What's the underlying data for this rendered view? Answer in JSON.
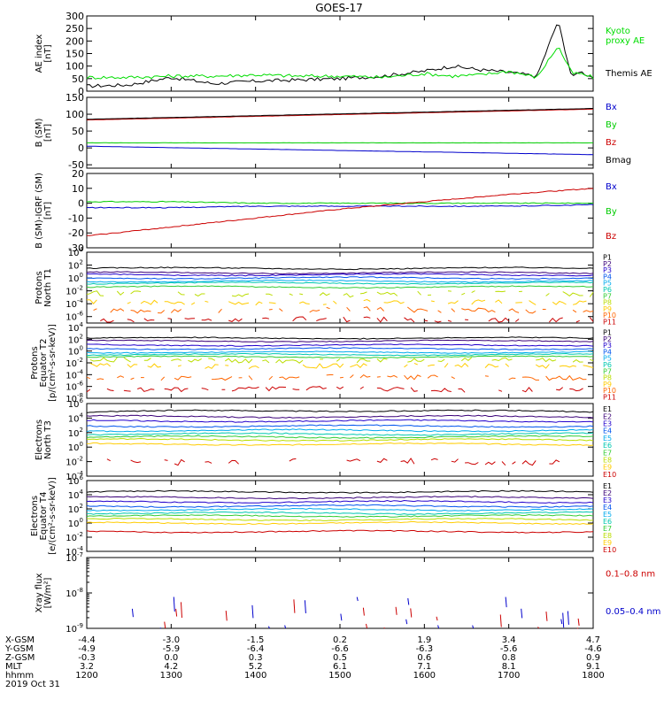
{
  "title": "GOES-17",
  "time_axis": {
    "hhmm_ticks": [
      "1200",
      "1300",
      "1400",
      "1500",
      "1600",
      "1700",
      "1800"
    ],
    "rows": [
      {
        "label": "X-GSM",
        "values": [
          "-4.4",
          "-3.0",
          "-1.5",
          "0.2",
          "1.9",
          "3.4",
          "4.7"
        ]
      },
      {
        "label": "Y-GSM",
        "values": [
          "-4.9",
          "-5.9",
          "-6.4",
          "-6.6",
          "-6.3",
          "-5.6",
          "-4.6"
        ]
      },
      {
        "label": "Z-GSM",
        "values": [
          "-0.3",
          "0.0",
          "0.3",
          "0.5",
          "0.6",
          "0.8",
          "0.9"
        ]
      },
      {
        "label": "MLT",
        "values": [
          "3.2",
          "4.2",
          "5.2",
          "6.1",
          "7.1",
          "8.1",
          "9.1"
        ]
      },
      {
        "label": "hhmm",
        "values": [
          "1200",
          "1300",
          "1400",
          "1500",
          "1600",
          "1700",
          "1800"
        ]
      }
    ],
    "date": "2019 Oct 31"
  },
  "chart_data": [
    {
      "type": "line",
      "ylabel_lines": [
        "AE index",
        "[nT]"
      ],
      "ylim": [
        0,
        300
      ],
      "yticks": [
        "300",
        "250",
        "200",
        "150",
        "100",
        "50",
        "0"
      ],
      "ytick_values": [
        300,
        250,
        200,
        150,
        100,
        50,
        0
      ],
      "x": [
        1200,
        1230,
        1300,
        1330,
        1400,
        1430,
        1500,
        1530,
        1600,
        1620,
        1640,
        1700,
        1720,
        1735,
        1745,
        1750,
        1800
      ],
      "series": [
        {
          "name": "Themis AE",
          "color": "#000000",
          "values": [
            20,
            25,
            55,
            30,
            40,
            45,
            50,
            60,
            80,
            100,
            85,
            75,
            60,
            280,
            50,
            80,
            55
          ]
        },
        {
          "name": "Kyoto proxy AE",
          "color": "#00dd00",
          "values": [
            55,
            55,
            60,
            60,
            65,
            60,
            60,
            55,
            70,
            60,
            65,
            80,
            55,
            180,
            70,
            70,
            55
          ]
        }
      ],
      "legend": [
        {
          "lines": [
            "Kyoto",
            "proxy AE"
          ],
          "color": "#00dd00"
        },
        {
          "lines": [
            "Themis AE"
          ],
          "color": "#000000"
        }
      ]
    },
    {
      "type": "line",
      "ylabel_lines": [
        "B (SM)",
        "[nT]"
      ],
      "ylim": [
        -60,
        150
      ],
      "yticks": [
        "150",
        "100",
        "50",
        "0",
        "-50"
      ],
      "ytick_values": [
        150,
        100,
        50,
        0,
        -50
      ],
      "x": [
        1200,
        1800
      ],
      "series": [
        {
          "name": "Bz",
          "color": "#cc0000",
          "values": [
            83,
            115
          ]
        },
        {
          "name": "Bmag",
          "color": "#000000",
          "values": [
            85,
            117
          ]
        },
        {
          "name": "By",
          "color": "#00cc00",
          "values": [
            15,
            15
          ]
        },
        {
          "name": "Bx",
          "color": "#0000cc",
          "values": [
            5,
            -20
          ]
        }
      ],
      "legend": [
        {
          "lines": [
            "Bx"
          ],
          "color": "#0000cc"
        },
        {
          "lines": [
            "By"
          ],
          "color": "#00cc00"
        },
        {
          "lines": [
            "Bz"
          ],
          "color": "#cc0000"
        },
        {
          "lines": [
            "Bmag"
          ],
          "color": "#000000"
        }
      ]
    },
    {
      "type": "line",
      "ylabel_lines": [
        "B (SM)-IGRF (SM)",
        "[nT]"
      ],
      "ylim": [
        -30,
        20
      ],
      "yticks": [
        "20",
        "10",
        "0",
        "-10",
        "-20",
        "-30"
      ],
      "ytick_values": [
        20,
        10,
        0,
        -10,
        -20,
        -30
      ],
      "x": [
        1200,
        1300,
        1400,
        1500,
        1600,
        1700,
        1800
      ],
      "series": [
        {
          "name": "By",
          "color": "#00cc00",
          "values": [
            1,
            1,
            0,
            0,
            0,
            0,
            0
          ]
        },
        {
          "name": "Bx",
          "color": "#0000cc",
          "values": [
            -3,
            -3,
            -2,
            -2,
            -2,
            -2,
            -1
          ]
        },
        {
          "name": "Bz",
          "color": "#cc0000",
          "values": [
            -22,
            -16,
            -10,
            -4,
            1,
            6,
            10
          ]
        }
      ],
      "legend": [
        {
          "lines": [
            "Bx"
          ],
          "color": "#0000cc"
        },
        {
          "lines": [
            "By"
          ],
          "color": "#00cc00"
        },
        {
          "lines": [
            "Bz"
          ],
          "color": "#cc0000"
        }
      ]
    },
    {
      "type": "line",
      "log": true,
      "ylabel_lines": [
        "Protons",
        "North T1"
      ],
      "ylim_exp": [
        -7,
        4
      ],
      "ytick_exps": [
        4,
        2,
        0,
        -2,
        -4,
        -6
      ],
      "series_levels": [
        1.5,
        0.8,
        0.5,
        0.0,
        -0.5,
        -0.8,
        -1.4,
        -2.5,
        -3.8,
        -5.0,
        -6.5
      ],
      "legend_colors": [
        "#000000",
        "#3a0078",
        "#2200cc",
        "#0055ee",
        "#00aaee",
        "#00c8b0",
        "#33cc33",
        "#bbdd00",
        "#ffcc00",
        "#ff6600",
        "#cc0000"
      ],
      "legend": [
        "P1",
        "P2",
        "P3",
        "P4",
        "P5",
        "P6",
        "P7",
        "P8",
        "P9",
        "P10",
        "P11"
      ]
    },
    {
      "type": "line",
      "log": true,
      "ylabel_lines": [
        "Protons",
        "Equator T2",
        "[p/(cm²-s-sr-keV)]"
      ],
      "ylim_exp": [
        -8,
        4
      ],
      "ytick_exps": [
        4,
        2,
        0,
        -2,
        -4,
        -6,
        -8
      ],
      "series_levels": [
        2.2,
        1.7,
        1.0,
        0.4,
        -0.2,
        -0.6,
        -1.0,
        -1.6,
        -2.5,
        -4.5,
        -6.5
      ],
      "legend_colors": [
        "#000000",
        "#3a0078",
        "#2200cc",
        "#0055ee",
        "#00aaee",
        "#00c8b0",
        "#33cc33",
        "#bbdd00",
        "#ffcc00",
        "#ff6600",
        "#cc0000"
      ],
      "legend": [
        "P1",
        "P2",
        "P3",
        "P4",
        "P5",
        "P6",
        "P7",
        "P8",
        "P9",
        "P10",
        "P11"
      ]
    },
    {
      "type": "line",
      "log": true,
      "ylabel_lines": [
        "Electrons",
        "North T3"
      ],
      "ylim_exp": [
        -4,
        6
      ],
      "ytick_exps": [
        6,
        4,
        2,
        0,
        -2,
        -4
      ],
      "series_levels": [
        4.8,
        4.2,
        3.6,
        2.9,
        2.3,
        1.8,
        1.4,
        1.0,
        0.4,
        -2.0
      ],
      "legend_colors": [
        "#000000",
        "#3a0078",
        "#2200cc",
        "#0055ee",
        "#00aaee",
        "#00c8b0",
        "#33cc33",
        "#bbdd00",
        "#ffcc00",
        "#cc0000"
      ],
      "legend": [
        "E1",
        "E2",
        "E3",
        "E4",
        "E5",
        "E6",
        "E7",
        "E8",
        "E9",
        "E10"
      ]
    },
    {
      "type": "line",
      "log": true,
      "ylabel_lines": [
        "Electrons",
        "Equator T4",
        "[e/(cm²-s-sr-keV)]"
      ],
      "ylim_exp": [
        -4,
        6
      ],
      "ytick_exps": [
        6,
        4,
        2,
        0,
        -2,
        -4
      ],
      "series_levels": [
        4.4,
        3.6,
        3.0,
        2.4,
        1.9,
        1.4,
        1.0,
        0.5,
        0.0,
        -1.2
      ],
      "legend_colors": [
        "#000000",
        "#3a0078",
        "#2200cc",
        "#0055ee",
        "#00aaee",
        "#00c8b0",
        "#33cc33",
        "#bbdd00",
        "#ffcc00",
        "#cc0000"
      ],
      "legend": [
        "E1",
        "E2",
        "E3",
        "E4",
        "E5",
        "E6",
        "E7",
        "E8",
        "E9",
        "E10"
      ]
    },
    {
      "type": "line",
      "log": true,
      "ylabel_lines": [
        "Xray flux",
        "[W/m²]"
      ],
      "ylim_exp": [
        -9,
        -7
      ],
      "ytick_exps": [
        -7,
        -8,
        -9
      ],
      "legend": [
        {
          "lines": [
            "0.1–0.8 nm"
          ],
          "color": "#cc0000"
        },
        {
          "lines": [
            "0.05–0.4 nm"
          ],
          "color": "#0000cc"
        }
      ]
    }
  ]
}
